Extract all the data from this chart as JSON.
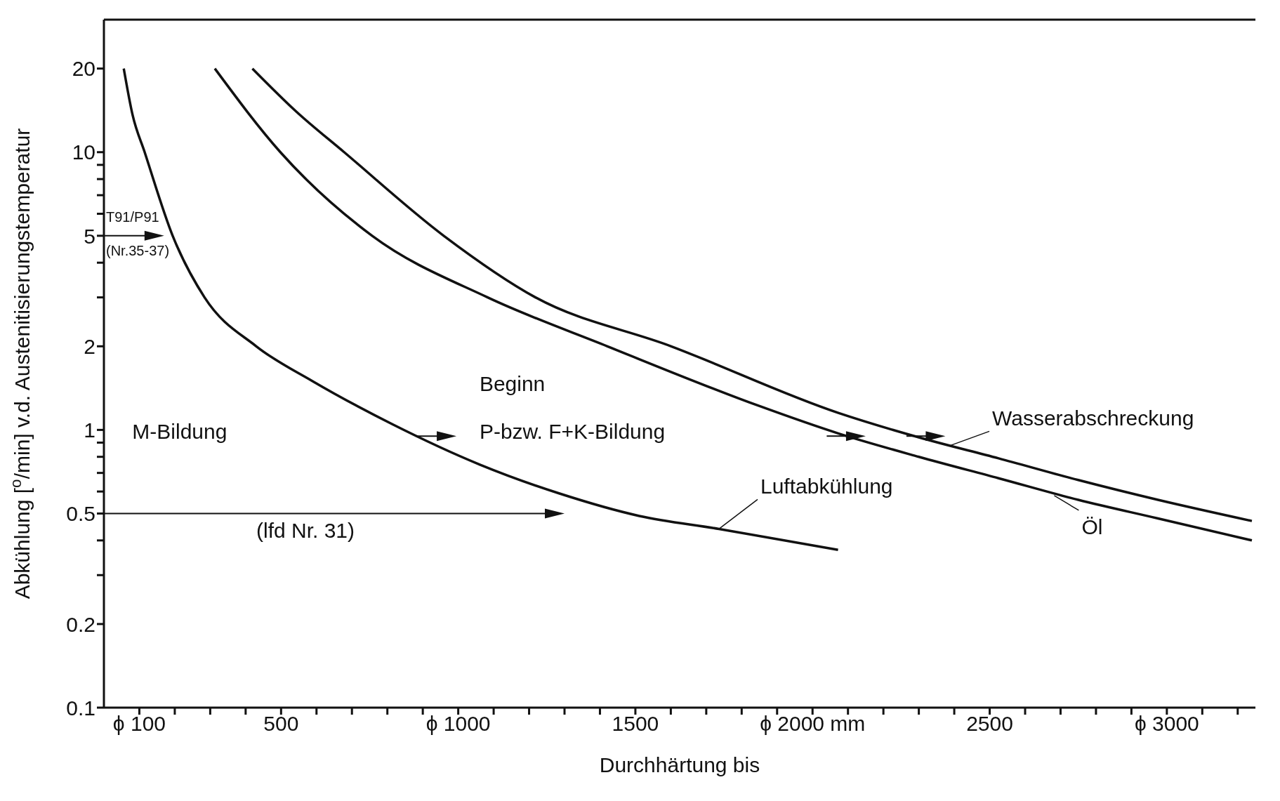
{
  "chart_data": {
    "type": "line",
    "xlabel": "Durchhärtung bis",
    "ylabel": "Abkühlung [$^{o}$/min] v.d. Austenitisierungstemperatur",
    "xlim": [
      0,
      3250
    ],
    "ylim": [
      0.1,
      30
    ],
    "log": "y",
    "marker": "none",
    "line_style": "solid",
    "xticks": [
      {
        "value": 100,
        "label": "ϕ 100"
      },
      {
        "value": 200,
        "label": null
      },
      {
        "value": 300,
        "label": null
      },
      {
        "value": 400,
        "label": null
      },
      500,
      {
        "value": 600,
        "label": null
      },
      {
        "value": 700,
        "label": null
      },
      {
        "value": 800,
        "label": null
      },
      {
        "value": 900,
        "label": null
      },
      {
        "value": 1000,
        "label": "ϕ 1000"
      },
      {
        "value": 1100,
        "label": null
      },
      {
        "value": 1200,
        "label": null
      },
      {
        "value": 1300,
        "label": null
      },
      {
        "value": 1400,
        "label": null
      },
      1500,
      {
        "value": 1600,
        "label": null
      },
      {
        "value": 1700,
        "label": null
      },
      {
        "value": 1800,
        "label": null
      },
      {
        "value": 1900,
        "label": null
      },
      {
        "value": 2000,
        "label": "ϕ 2000 mm"
      },
      {
        "value": 2100,
        "label": null
      },
      {
        "value": 2200,
        "label": null
      },
      {
        "value": 2300,
        "label": null
      },
      {
        "value": 2400,
        "label": null
      },
      2500,
      {
        "value": 2600,
        "label": null
      },
      {
        "value": 2700,
        "label": null
      },
      {
        "value": 2800,
        "label": null
      },
      {
        "value": 2900,
        "label": null
      },
      {
        "value": 3000,
        "label": "ϕ 3000"
      },
      {
        "value": 3100,
        "label": null
      },
      {
        "value": 3200,
        "label": null
      }
    ],
    "yticks": [
      0.1,
      0.2,
      {
        "value": 0.3,
        "label": null
      },
      {
        "value": 0.4,
        "label": null
      },
      0.5,
      {
        "value": 0.6,
        "label": null
      },
      {
        "value": 0.7,
        "label": null
      },
      {
        "value": 0.8,
        "label": null
      },
      {
        "value": 0.9,
        "label": null
      },
      1,
      2,
      {
        "value": 3,
        "label": null
      },
      {
        "value": 4,
        "label": null
      },
      5,
      {
        "value": 6,
        "label": null
      },
      {
        "value": 7,
        "label": null
      },
      {
        "value": 8,
        "label": null
      },
      {
        "value": 9,
        "label": null
      },
      10,
      20
    ],
    "series": [
      {
        "color": "#111111",
        "x": [
          56,
          81,
          115,
          194,
          284,
          430,
          588,
          813,
          1061,
          1286,
          1511,
          1736,
          2072
        ],
        "values": [
          20,
          13.6,
          10,
          5,
          3,
          2,
          1.5,
          1.05,
          0.75,
          0.59,
          0.49,
          0.44,
          0.37
        ]
      },
      {
        "color": "#111111",
        "x": [
          313,
          498,
          757,
          1083,
          1421,
          1849,
          2074,
          2300,
          2525,
          2750,
          2975,
          3240
        ],
        "values": [
          20,
          10,
          5,
          3,
          2,
          1.22,
          0.97,
          0.8,
          0.67,
          0.56,
          0.48,
          0.4
        ]
      },
      {
        "color": "#111111",
        "x": [
          419,
          543,
          678,
          959,
          1218,
          1601,
          2074,
          2300,
          2525,
          2750,
          2975,
          3240
        ],
        "values": [
          20,
          14,
          10,
          5,
          3,
          2,
          1.15,
          0.94,
          0.79,
          0.66,
          0.56,
          0.47
        ]
      }
    ],
    "annotations": [
      {
        "text": "Luftabkühlung",
        "x": 1736,
        "y": 0.44
      },
      {
        "text": "Öl",
        "x": 2682,
        "y": 0.58
      },
      {
        "text": "Wasserabschreckung",
        "x": 2390,
        "y": 0.88
      },
      "M-Bildung",
      "Beginn",
      "P-bzw. F+K-Bildung",
      "T91/P91",
      "(Nr.35-37)",
      "(lfd Nr. 31)"
    ]
  }
}
